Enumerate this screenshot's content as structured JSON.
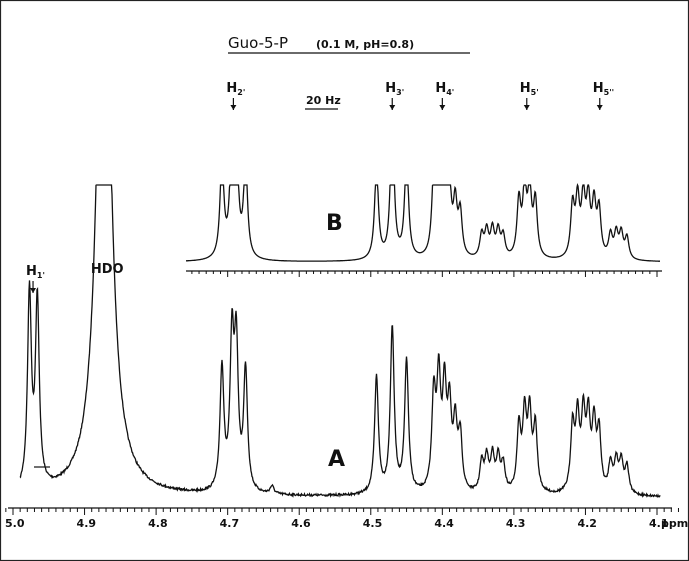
{
  "chart_data": {
    "type": "line",
    "title": "Guo-5-P",
    "subtitle": "(0.1 M, pH=0.8)",
    "xlabel": "ppm",
    "x_direction": "decreasing",
    "xlim": [
      5.03,
      4.09
    ],
    "tick_labels": [
      "5.0",
      "4.9",
      "4.8",
      "4.7",
      "4.6",
      "4.5",
      "4.4",
      "4.3",
      "4.2",
      "4.1"
    ],
    "scale_bar": "20 Hz",
    "series": [
      {
        "name": "A",
        "peaks": [
          {
            "ppm": 4.977,
            "h": 1.0
          },
          {
            "ppm": 4.966,
            "h": 0.95
          },
          {
            "ppm": 4.873,
            "h": 3.2,
            "w": 0.011
          },
          {
            "ppm": 4.708,
            "h": 0.63
          },
          {
            "ppm": 4.694,
            "h": 0.74
          },
          {
            "ppm": 4.688,
            "h": 0.72
          },
          {
            "ppm": 4.675,
            "h": 0.62
          },
          {
            "ppm": 4.638,
            "h": 0.04
          },
          {
            "ppm": 4.492,
            "h": 0.6
          },
          {
            "ppm": 4.47,
            "h": 0.85
          },
          {
            "ppm": 4.45,
            "h": 0.68
          },
          {
            "ppm": 4.412,
            "h": 0.48
          },
          {
            "ppm": 4.405,
            "h": 0.55
          },
          {
            "ppm": 4.397,
            "h": 0.5
          },
          {
            "ppm": 4.39,
            "h": 0.4
          },
          {
            "ppm": 4.382,
            "h": 0.33
          },
          {
            "ppm": 4.375,
            "h": 0.28
          },
          {
            "ppm": 4.345,
            "h": 0.15
          },
          {
            "ppm": 4.338,
            "h": 0.17
          },
          {
            "ppm": 4.33,
            "h": 0.18
          },
          {
            "ppm": 4.322,
            "h": 0.17
          },
          {
            "ppm": 4.315,
            "h": 0.14
          },
          {
            "ppm": 4.293,
            "h": 0.33
          },
          {
            "ppm": 4.285,
            "h": 0.38
          },
          {
            "ppm": 4.278,
            "h": 0.38
          },
          {
            "ppm": 4.27,
            "h": 0.33
          },
          {
            "ppm": 4.218,
            "h": 0.33
          },
          {
            "ppm": 4.211,
            "h": 0.36
          },
          {
            "ppm": 4.203,
            "h": 0.37
          },
          {
            "ppm": 4.196,
            "h": 0.36
          },
          {
            "ppm": 4.188,
            "h": 0.33
          },
          {
            "ppm": 4.181,
            "h": 0.3
          },
          {
            "ppm": 4.165,
            "h": 0.15
          },
          {
            "ppm": 4.157,
            "h": 0.16
          },
          {
            "ppm": 4.15,
            "h": 0.16
          },
          {
            "ppm": 4.142,
            "h": 0.14
          }
        ]
      },
      {
        "name": "B",
        "peaks": [
          {
            "ppm": 4.708,
            "h": 0.63
          },
          {
            "ppm": 4.694,
            "h": 0.74
          },
          {
            "ppm": 4.688,
            "h": 0.72
          },
          {
            "ppm": 4.675,
            "h": 0.62
          },
          {
            "ppm": 4.492,
            "h": 0.6
          },
          {
            "ppm": 4.47,
            "h": 0.9
          },
          {
            "ppm": 4.45,
            "h": 0.68
          },
          {
            "ppm": 4.412,
            "h": 0.5
          },
          {
            "ppm": 4.405,
            "h": 0.56
          },
          {
            "ppm": 4.397,
            "h": 0.5
          },
          {
            "ppm": 4.39,
            "h": 0.4
          },
          {
            "ppm": 4.382,
            "h": 0.33
          },
          {
            "ppm": 4.375,
            "h": 0.28
          },
          {
            "ppm": 4.345,
            "h": 0.15
          },
          {
            "ppm": 4.338,
            "h": 0.17
          },
          {
            "ppm": 4.33,
            "h": 0.18
          },
          {
            "ppm": 4.322,
            "h": 0.17
          },
          {
            "ppm": 4.315,
            "h": 0.14
          },
          {
            "ppm": 4.293,
            "h": 0.36
          },
          {
            "ppm": 4.285,
            "h": 0.42
          },
          {
            "ppm": 4.278,
            "h": 0.42
          },
          {
            "ppm": 4.27,
            "h": 0.36
          },
          {
            "ppm": 4.218,
            "h": 0.33
          },
          {
            "ppm": 4.211,
            "h": 0.36
          },
          {
            "ppm": 4.203,
            "h": 0.37
          },
          {
            "ppm": 4.196,
            "h": 0.36
          },
          {
            "ppm": 4.188,
            "h": 0.33
          },
          {
            "ppm": 4.181,
            "h": 0.3
          },
          {
            "ppm": 4.165,
            "h": 0.15
          },
          {
            "ppm": 4.157,
            "h": 0.16
          },
          {
            "ppm": 4.15,
            "h": 0.16
          },
          {
            "ppm": 4.142,
            "h": 0.14
          }
        ]
      }
    ],
    "peak_labels": [
      {
        "text": "H1'",
        "ppm": 4.972,
        "trace": "A"
      },
      {
        "text": "HDO",
        "ppm": 4.873,
        "trace": "A"
      },
      {
        "text": "H2'",
        "ppm": 4.692,
        "trace": "B"
      },
      {
        "text": "H3'",
        "ppm": 4.47,
        "trace": "B"
      },
      {
        "text": "H4'",
        "ppm": 4.4,
        "trace": "B"
      },
      {
        "text": "H5'",
        "ppm": 4.282,
        "trace": "B"
      },
      {
        "text": "H5''",
        "ppm": 4.18,
        "trace": "B"
      }
    ]
  }
}
